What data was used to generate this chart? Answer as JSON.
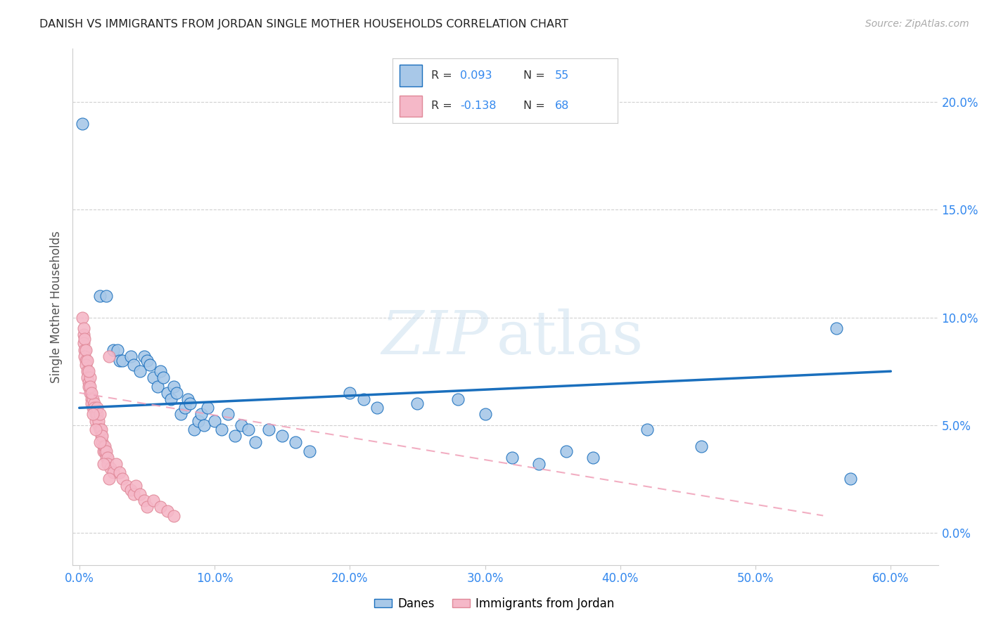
{
  "title": "DANISH VS IMMIGRANTS FROM JORDAN SINGLE MOTHER HOUSEHOLDS CORRELATION CHART",
  "source": "Source: ZipAtlas.com",
  "xlabel_ticks": [
    "0.0%",
    "10.0%",
    "20.0%",
    "30.0%",
    "40.0%",
    "50.0%",
    "60.0%"
  ],
  "xlabel_vals": [
    0.0,
    0.1,
    0.2,
    0.3,
    0.4,
    0.5,
    0.6
  ],
  "ylabel_ticks": [
    "0.0%",
    "5.0%",
    "10.0%",
    "15.0%",
    "20.0%"
  ],
  "ylabel_vals": [
    0.0,
    0.05,
    0.1,
    0.15,
    0.2
  ],
  "ylabel": "Single Mother Households",
  "xlim": [
    -0.005,
    0.635
  ],
  "ylim": [
    -0.015,
    0.225
  ],
  "danes_color": "#a8c8e8",
  "jordan_color": "#f5b8c8",
  "danes_line_color": "#1a6fbd",
  "jordan_line_color": "#f0a0b8",
  "danes_scatter": [
    [
      0.002,
      0.19
    ],
    [
      0.015,
      0.11
    ],
    [
      0.02,
      0.11
    ],
    [
      0.025,
      0.085
    ],
    [
      0.028,
      0.085
    ],
    [
      0.03,
      0.08
    ],
    [
      0.032,
      0.08
    ],
    [
      0.038,
      0.082
    ],
    [
      0.04,
      0.078
    ],
    [
      0.045,
      0.075
    ],
    [
      0.048,
      0.082
    ],
    [
      0.05,
      0.08
    ],
    [
      0.052,
      0.078
    ],
    [
      0.055,
      0.072
    ],
    [
      0.058,
      0.068
    ],
    [
      0.06,
      0.075
    ],
    [
      0.062,
      0.072
    ],
    [
      0.065,
      0.065
    ],
    [
      0.068,
      0.062
    ],
    [
      0.07,
      0.068
    ],
    [
      0.072,
      0.065
    ],
    [
      0.075,
      0.055
    ],
    [
      0.078,
      0.058
    ],
    [
      0.08,
      0.062
    ],
    [
      0.082,
      0.06
    ],
    [
      0.085,
      0.048
    ],
    [
      0.088,
      0.052
    ],
    [
      0.09,
      0.055
    ],
    [
      0.092,
      0.05
    ],
    [
      0.095,
      0.058
    ],
    [
      0.1,
      0.052
    ],
    [
      0.105,
      0.048
    ],
    [
      0.11,
      0.055
    ],
    [
      0.115,
      0.045
    ],
    [
      0.12,
      0.05
    ],
    [
      0.125,
      0.048
    ],
    [
      0.13,
      0.042
    ],
    [
      0.14,
      0.048
    ],
    [
      0.15,
      0.045
    ],
    [
      0.16,
      0.042
    ],
    [
      0.17,
      0.038
    ],
    [
      0.2,
      0.065
    ],
    [
      0.21,
      0.062
    ],
    [
      0.22,
      0.058
    ],
    [
      0.25,
      0.06
    ],
    [
      0.28,
      0.062
    ],
    [
      0.3,
      0.055
    ],
    [
      0.32,
      0.035
    ],
    [
      0.34,
      0.032
    ],
    [
      0.36,
      0.038
    ],
    [
      0.38,
      0.035
    ],
    [
      0.42,
      0.048
    ],
    [
      0.46,
      0.04
    ],
    [
      0.56,
      0.095
    ],
    [
      0.57,
      0.025
    ]
  ],
  "jordan_scatter": [
    [
      0.002,
      0.1
    ],
    [
      0.003,
      0.092
    ],
    [
      0.003,
      0.088
    ],
    [
      0.004,
      0.085
    ],
    [
      0.004,
      0.082
    ],
    [
      0.005,
      0.08
    ],
    [
      0.005,
      0.078
    ],
    [
      0.006,
      0.075
    ],
    [
      0.006,
      0.072
    ],
    [
      0.007,
      0.07
    ],
    [
      0.007,
      0.068
    ],
    [
      0.008,
      0.065
    ],
    [
      0.008,
      0.072
    ],
    [
      0.009,
      0.062
    ],
    [
      0.009,
      0.06
    ],
    [
      0.01,
      0.058
    ],
    [
      0.01,
      0.062
    ],
    [
      0.011,
      0.06
    ],
    [
      0.011,
      0.058
    ],
    [
      0.012,
      0.055
    ],
    [
      0.012,
      0.052
    ],
    [
      0.013,
      0.055
    ],
    [
      0.013,
      0.058
    ],
    [
      0.014,
      0.05
    ],
    [
      0.014,
      0.052
    ],
    [
      0.015,
      0.048
    ],
    [
      0.015,
      0.055
    ],
    [
      0.016,
      0.045
    ],
    [
      0.016,
      0.048
    ],
    [
      0.017,
      0.042
    ],
    [
      0.017,
      0.045
    ],
    [
      0.018,
      0.04
    ],
    [
      0.018,
      0.038
    ],
    [
      0.019,
      0.038
    ],
    [
      0.019,
      0.04
    ],
    [
      0.02,
      0.035
    ],
    [
      0.02,
      0.038
    ],
    [
      0.021,
      0.035
    ],
    [
      0.021,
      0.032
    ],
    [
      0.022,
      0.082
    ],
    [
      0.023,
      0.03
    ],
    [
      0.025,
      0.028
    ],
    [
      0.027,
      0.032
    ],
    [
      0.03,
      0.028
    ],
    [
      0.032,
      0.025
    ],
    [
      0.035,
      0.022
    ],
    [
      0.038,
      0.02
    ],
    [
      0.04,
      0.018
    ],
    [
      0.042,
      0.022
    ],
    [
      0.045,
      0.018
    ],
    [
      0.048,
      0.015
    ],
    [
      0.05,
      0.012
    ],
    [
      0.055,
      0.015
    ],
    [
      0.06,
      0.012
    ],
    [
      0.065,
      0.01
    ],
    [
      0.07,
      0.008
    ],
    [
      0.003,
      0.095
    ],
    [
      0.004,
      0.09
    ],
    [
      0.005,
      0.085
    ],
    [
      0.006,
      0.08
    ],
    [
      0.007,
      0.075
    ],
    [
      0.008,
      0.068
    ],
    [
      0.009,
      0.065
    ],
    [
      0.01,
      0.055
    ],
    [
      0.012,
      0.048
    ],
    [
      0.015,
      0.042
    ],
    [
      0.018,
      0.032
    ],
    [
      0.022,
      0.025
    ]
  ],
  "danes_trendline": [
    [
      0.0,
      0.058
    ],
    [
      0.6,
      0.075
    ]
  ],
  "jordan_trendline": [
    [
      0.0,
      0.065
    ],
    [
      0.55,
      0.008
    ]
  ],
  "watermark_zip": "ZIP",
  "watermark_atlas": "atlas",
  "background_color": "#ffffff",
  "grid_color": "#d0d0d0",
  "legend_danes_text": "R = 0.093   N = 55",
  "legend_jordan_text": "R = -0.138   N = 68"
}
